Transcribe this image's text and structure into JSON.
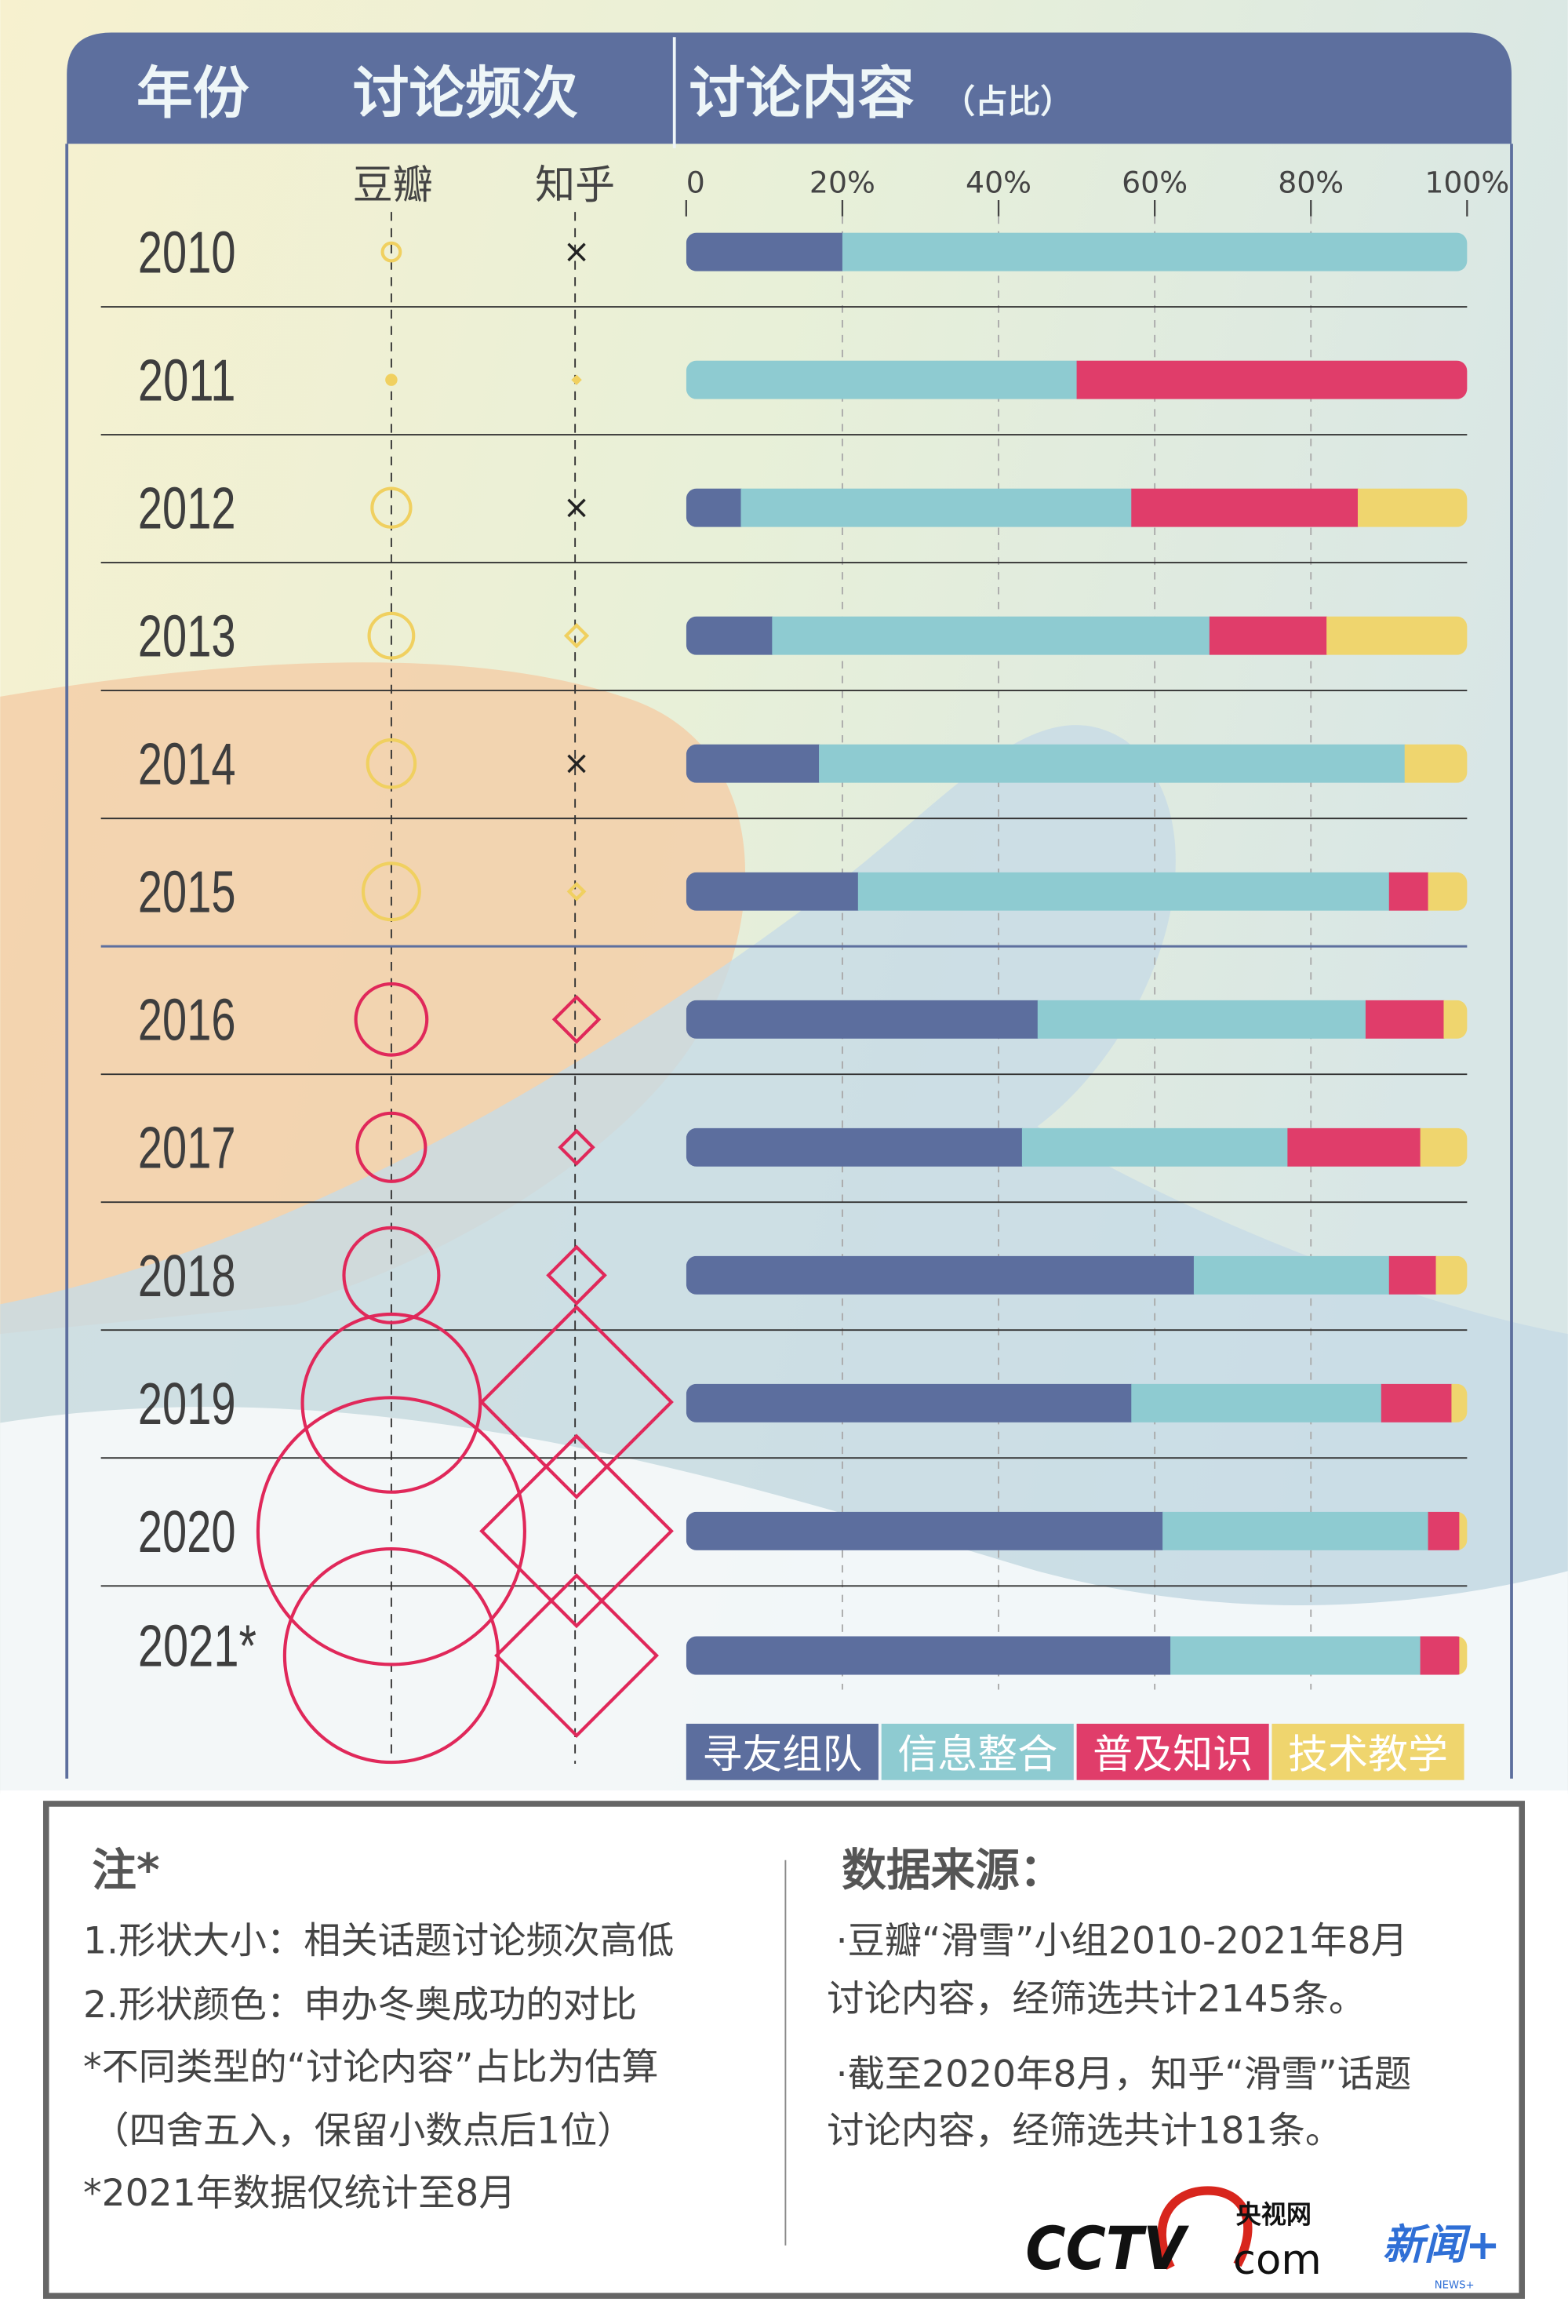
{
  "header": {
    "year_label": "年份",
    "frequency_label": "讨论频次",
    "content_label": "讨论内容",
    "content_sub": "（占比）",
    "douban": "豆瓣",
    "zhihu": "知乎"
  },
  "colors": {
    "header_bg": "#5d6f9e",
    "series": [
      "#5c6e9e",
      "#8ecbd1",
      "#e03d6a",
      "#efd56e"
    ],
    "marker_pre2016": "#f0d060",
    "marker_post2016": "#e0285a"
  },
  "chart_data": {
    "type": "bar",
    "stacked": true,
    "orientation": "horizontal",
    "categories": [
      "2010",
      "2011",
      "2012",
      "2013",
      "2014",
      "2015",
      "2016",
      "2017",
      "2018",
      "2019",
      "2020",
      "2021*"
    ],
    "xlim": [
      0,
      100
    ],
    "x_ticks": [
      "0",
      "20%",
      "40%",
      "60%",
      "80%",
      "100%"
    ],
    "grid": true,
    "legend_position": "bottom-right",
    "series": [
      {
        "name": "寻友组队",
        "values": [
          20,
          0,
          7,
          11,
          17,
          22,
          45,
          43,
          65,
          57,
          61,
          62
        ]
      },
      {
        "name": "信息整合",
        "values": [
          80,
          50,
          50,
          56,
          75,
          68,
          42,
          34,
          25,
          32,
          34,
          32
        ]
      },
      {
        "name": "普及知识",
        "values": [
          0,
          50,
          29,
          15,
          0,
          5,
          10,
          17,
          6,
          9,
          4,
          5
        ]
      },
      {
        "name": "技术教学",
        "values": [
          0,
          0,
          14,
          18,
          8,
          5,
          3,
          6,
          4,
          2,
          1,
          1
        ]
      }
    ],
    "frequency_markers": {
      "douban": {
        "shape": "circle",
        "relative_size": [
          6,
          3,
          13,
          15,
          16,
          19,
          24,
          23,
          32,
          60,
          90,
          72
        ]
      },
      "zhihu": {
        "shape": "diamond",
        "relative_size": [
          null,
          2,
          null,
          7,
          null,
          5,
          15,
          11,
          19,
          64,
          64,
          54
        ],
        "none_marker": "×"
      },
      "color_change_year": "2016"
    }
  },
  "notes": {
    "title": "注*",
    "lines": [
      "1.形状大小：相关话题讨论频次高低",
      "2.形状颜色：申办冬奥成功的对比",
      "*不同类型的“讨论内容”占比为估算",
      "（四舍五入，保留小数点后1位）",
      "*2021年数据仅统计至8月"
    ]
  },
  "source": {
    "title": "数据来源：",
    "lines": [
      "·豆瓣“滑雪”小组2010-2021年8月",
      "讨论内容，经筛选共计2145条。",
      "·截至2020年8月，知乎“滑雪”话题",
      "讨论内容，经筛选共计181条。"
    ]
  },
  "logos": {
    "cctv": "CCTV",
    "cctv_cn": "央视网",
    "cctv_com": "com",
    "news": "新闻+",
    "news_en": "NEWS+"
  }
}
